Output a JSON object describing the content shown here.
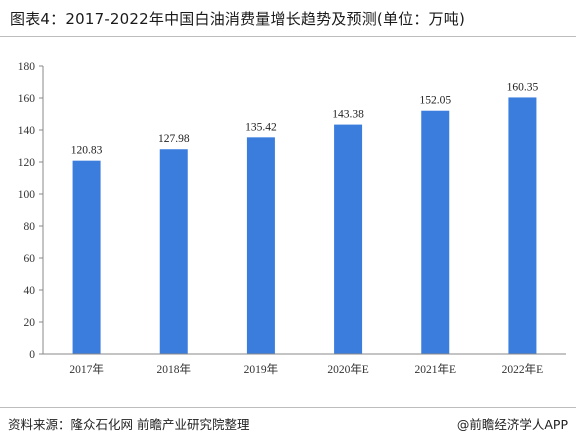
{
  "title": "图表4：2017-2022年中国白油消费量增长趋势及预测(单位：万吨)",
  "source": "资料来源：隆众石化网 前瞻产业研究院整理",
  "credit": "@前瞻经济学人APP",
  "colors": {
    "bar": "#3b7ddd",
    "axis": "#888888"
  },
  "chart_data": {
    "type": "bar",
    "title": "图表4：2017-2022年中国白油消费量增长趋势及预测(单位：万吨)",
    "xlabel": "",
    "ylabel": "",
    "categories": [
      "2017年",
      "2018年",
      "2019年",
      "2020年E",
      "2021年E",
      "2022年E"
    ],
    "values": [
      120.83,
      127.98,
      135.42,
      143.38,
      152.05,
      160.35
    ],
    "data_labels": [
      "120.83",
      "127.98",
      "135.42",
      "143.38",
      "152.05",
      "160.35"
    ],
    "ylim": [
      0,
      180
    ],
    "yticks": [
      0,
      20,
      40,
      60,
      80,
      100,
      120,
      140,
      160,
      180
    ],
    "grid": false,
    "legend": "none"
  }
}
